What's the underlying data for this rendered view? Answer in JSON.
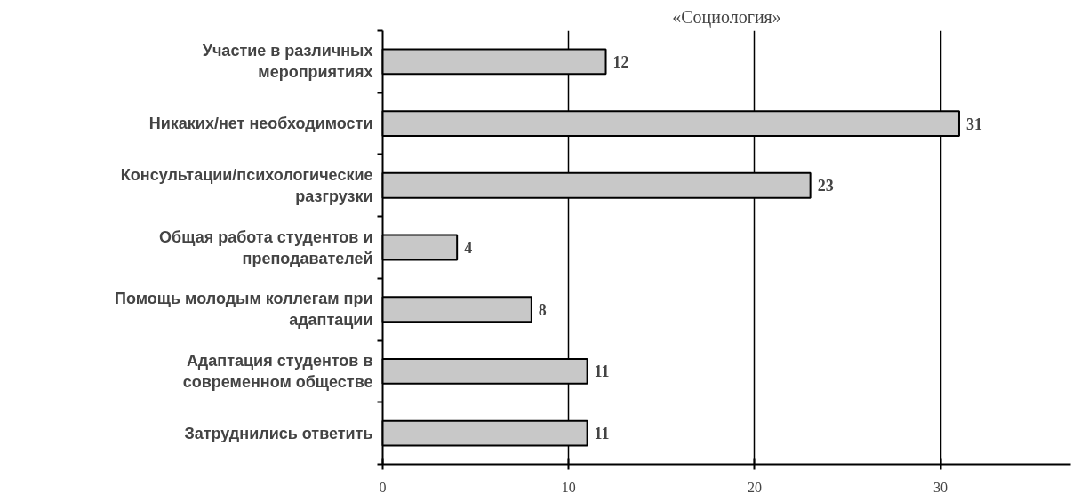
{
  "chart_data": {
    "type": "bar",
    "orientation": "horizontal",
    "title": "«Социология»",
    "categories": [
      "Участие в различных мероприятиях",
      "Никаких/нет необходимости",
      "Консультации/психологические разгрузки",
      "Общая работа студентов и преподавателей",
      "Помощь молодым коллегам при адаптации",
      "Адаптация студентов в современном обществе",
      "Затруднились ответить"
    ],
    "values": [
      12,
      31,
      23,
      4,
      8,
      11,
      11
    ],
    "color": "#c8c8c8",
    "xlim": [
      0,
      37
    ],
    "xticks": [
      0,
      10,
      20,
      30
    ],
    "grid": "x",
    "data_labels": true
  }
}
